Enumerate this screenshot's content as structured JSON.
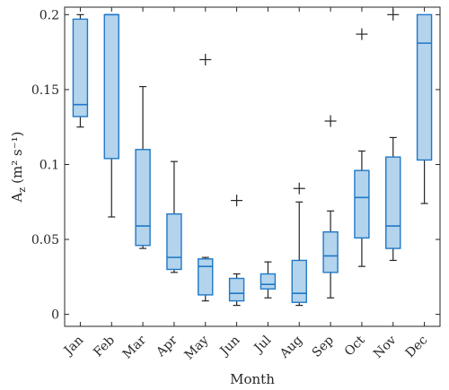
{
  "chart_data": {
    "type": "box",
    "xlabel": "Month",
    "ylabel": "A",
    "ylabel_sub": "z",
    "ylabel_unit": "(m² s⁻¹)",
    "ylim": [
      -0.008,
      0.205
    ],
    "yticks": [
      0,
      0.05,
      0.1,
      0.15,
      0.2
    ],
    "ytick_labels": [
      "0",
      "0.05",
      "0.1",
      "0.15",
      "0.2"
    ],
    "categories": [
      "Jan",
      "Feb",
      "Mar",
      "Apr",
      "May",
      "Jun",
      "Jul",
      "Aug",
      "Sep",
      "Oct",
      "Nov",
      "Dec"
    ],
    "boxes": [
      {
        "whisker_low": 0.125,
        "q1": 0.132,
        "median": 0.14,
        "q3": 0.197,
        "whisker_high": 0.2,
        "outliers": []
      },
      {
        "whisker_low": 0.065,
        "q1": 0.104,
        "median": 0.2,
        "q3": 0.2,
        "whisker_high": 0.2,
        "outliers": []
      },
      {
        "whisker_low": 0.044,
        "q1": 0.046,
        "median": 0.059,
        "q3": 0.11,
        "whisker_high": 0.152,
        "outliers": []
      },
      {
        "whisker_low": 0.028,
        "q1": 0.03,
        "median": 0.038,
        "q3": 0.067,
        "whisker_high": 0.102,
        "outliers": []
      },
      {
        "whisker_low": 0.009,
        "q1": 0.013,
        "median": 0.032,
        "q3": 0.037,
        "whisker_high": 0.038,
        "outliers": [
          0.17
        ]
      },
      {
        "whisker_low": 0.006,
        "q1": 0.009,
        "median": 0.014,
        "q3": 0.024,
        "whisker_high": 0.027,
        "outliers": [
          0.076
        ]
      },
      {
        "whisker_low": 0.011,
        "q1": 0.017,
        "median": 0.02,
        "q3": 0.027,
        "whisker_high": 0.035,
        "outliers": []
      },
      {
        "whisker_low": 0.006,
        "q1": 0.008,
        "median": 0.014,
        "q3": 0.036,
        "whisker_high": 0.075,
        "outliers": [
          0.084
        ]
      },
      {
        "whisker_low": 0.011,
        "q1": 0.028,
        "median": 0.039,
        "q3": 0.055,
        "whisker_high": 0.069,
        "outliers": [
          0.129
        ]
      },
      {
        "whisker_low": 0.032,
        "q1": 0.051,
        "median": 0.078,
        "q3": 0.096,
        "whisker_high": 0.109,
        "outliers": [
          0.187
        ]
      },
      {
        "whisker_low": 0.036,
        "q1": 0.044,
        "median": 0.059,
        "q3": 0.105,
        "whisker_high": 0.118,
        "outliers": [
          0.2
        ]
      },
      {
        "whisker_low": 0.074,
        "q1": 0.103,
        "median": 0.181,
        "q3": 0.2,
        "whisker_high": 0.2,
        "outliers": []
      }
    ],
    "colors": {
      "box_fill": "#b3d4ec",
      "box_edge": "#1f78c8",
      "whisker": "#262626",
      "outlier": "#262626",
      "axes": "#262626"
    },
    "grid": false,
    "legend": "none"
  }
}
